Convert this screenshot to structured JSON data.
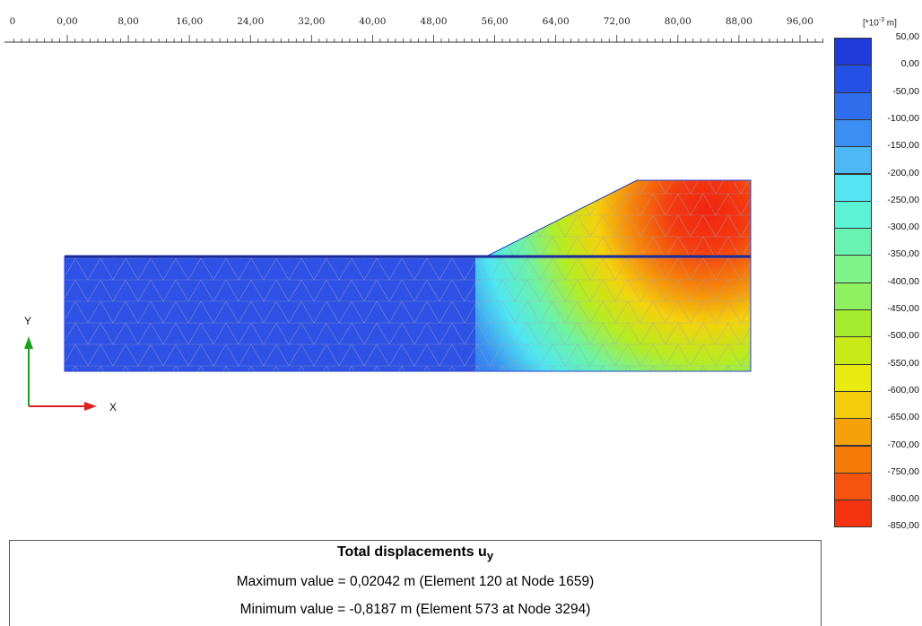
{
  "ruler": {
    "labels": [
      "0",
      "0,00",
      "8,00",
      "16,00",
      "24,00",
      "32,00",
      "40,00",
      "48,00",
      "56,00",
      "64,00",
      "72,00",
      "80,00",
      "88,00",
      "96,00"
    ]
  },
  "axes": {
    "x_label": "X",
    "y_label": "Y"
  },
  "legend": {
    "units_prefix": "[*10",
    "units_exp": "-3",
    "units_suffix": " m]",
    "values": [
      "50,00",
      "0,00",
      "-50,00",
      "-100,00",
      "-150,00",
      "-200,00",
      "-250,00",
      "-300,00",
      "-350,00",
      "-400,00",
      "-450,00",
      "-500,00",
      "-550,00",
      "-600,00",
      "-650,00",
      "-700,00",
      "-750,00",
      "-800,00",
      "-850,00"
    ],
    "colors": [
      "#1f3bdc",
      "#2450e6",
      "#2f6fee",
      "#3c8ef2",
      "#4db9f4",
      "#55e4f2",
      "#5bf2d6",
      "#6af2b0",
      "#7ff28a",
      "#8ff060",
      "#a6ec2e",
      "#c8ea16",
      "#e8ea10",
      "#f4cc0c",
      "#f5a20a",
      "#f57a08",
      "#f45410",
      "#f43410"
    ]
  },
  "info": {
    "title_main": "Total displacements u",
    "title_sub": "y",
    "max_line": "Maximum value = 0,02042 m (Element 120 at Node 1659)",
    "min_line": "Minimum value = -0,8187 m (Element 573 at Node 3294)"
  },
  "colors": {
    "embankment_line": "#1a2a9a",
    "mesh": "#9aa3b8"
  }
}
